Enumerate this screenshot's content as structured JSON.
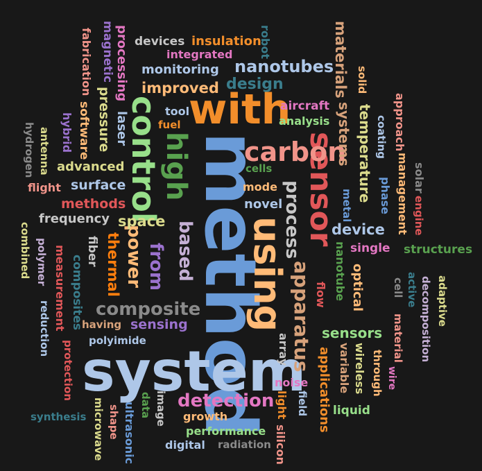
{
  "background": "#181818",
  "words": [
    {
      "text": "method",
      "color": "#6a9bd8"
    },
    {
      "text": "system",
      "color": "#aec7e8"
    },
    {
      "text": "with",
      "color": "#f28e2b"
    },
    {
      "text": "using",
      "color": "#ffbb78"
    },
    {
      "text": "sensor",
      "color": "#e15759"
    },
    {
      "text": "carbon",
      "color": "#f1948a"
    },
    {
      "text": "control",
      "color": "#98df8a"
    },
    {
      "text": "high",
      "color": "#59a14f"
    },
    {
      "text": "composite",
      "color": "#8a8a8a"
    },
    {
      "text": "detection",
      "color": "#e377c2"
    },
    {
      "text": "apparatus",
      "color": "#d7a27b"
    },
    {
      "text": "process",
      "color": "#c7c7c7"
    },
    {
      "text": "from",
      "color": "#9b72ce"
    },
    {
      "text": "power",
      "color": "#ffbb78"
    },
    {
      "text": "based",
      "color": "#c5b0d5"
    },
    {
      "text": "nanotubes",
      "color": "#aec7e8"
    },
    {
      "text": "design",
      "color": "#3a7d8c"
    },
    {
      "text": "improved",
      "color": "#ffbb78"
    },
    {
      "text": "space",
      "color": "#dbdb8d"
    },
    {
      "text": "methods",
      "color": "#e15759"
    },
    {
      "text": "surface",
      "color": "#aec7e8"
    },
    {
      "text": "advanced",
      "color": "#dbdb8d"
    },
    {
      "text": "frequency",
      "color": "#c7c7c7"
    },
    {
      "text": "thermal",
      "color": "#ff7f0e"
    },
    {
      "text": "device",
      "color": "#aec7e8"
    },
    {
      "text": "single",
      "color": "#e377c2"
    },
    {
      "text": "sensors",
      "color": "#98df8a"
    },
    {
      "text": "sensing",
      "color": "#9b72ce"
    },
    {
      "text": "monitoring",
      "color": "#aec7e8"
    },
    {
      "text": "insulation",
      "color": "#f28e2b"
    },
    {
      "text": "integrated",
      "color": "#e377c2"
    },
    {
      "text": "devices",
      "color": "#c7c7c7"
    },
    {
      "text": "aircraft",
      "color": "#e377c2"
    },
    {
      "text": "analysis",
      "color": "#98df8a"
    },
    {
      "text": "temperature",
      "color": "#dbdb8d"
    },
    {
      "text": "systems",
      "color": "#d7a27b"
    },
    {
      "text": "materials",
      "color": "#d7a27b"
    },
    {
      "text": "pressure",
      "color": "#dbdb8d"
    },
    {
      "text": "laser",
      "color": "#aec7e8"
    },
    {
      "text": "processing",
      "color": "#e377c2"
    },
    {
      "text": "magnetic",
      "color": "#9b72ce"
    },
    {
      "text": "fabrication",
      "color": "#f1948a"
    },
    {
      "text": "robot",
      "color": "#3a7d8c"
    },
    {
      "text": "solid",
      "color": "#ffbb78"
    },
    {
      "text": "coating",
      "color": "#aec7e8"
    },
    {
      "text": "approach",
      "color": "#f1948a"
    },
    {
      "text": "management",
      "color": "#ffbb78"
    },
    {
      "text": "solar",
      "color": "#8a8a8a"
    },
    {
      "text": "engine",
      "color": "#e15759"
    },
    {
      "text": "phase",
      "color": "#6a9bd8"
    },
    {
      "text": "metal",
      "color": "#6a9bd8"
    },
    {
      "text": "novel",
      "color": "#aec7e8"
    },
    {
      "text": "mode",
      "color": "#ffbb78"
    },
    {
      "text": "cells",
      "color": "#59a14f"
    },
    {
      "text": "tool",
      "color": "#aec7e8"
    },
    {
      "text": "fuel",
      "color": "#f28e2b"
    },
    {
      "text": "software",
      "color": "#ffbb78"
    },
    {
      "text": "hybrid",
      "color": "#9b72ce"
    },
    {
      "text": "antenna",
      "color": "#dbdb8d"
    },
    {
      "text": "hydrogen",
      "color": "#8a8a8a"
    },
    {
      "text": "flight",
      "color": "#f1948a"
    },
    {
      "text": "fiber",
      "color": "#c7c7c7"
    },
    {
      "text": "composites",
      "color": "#3a7d8c"
    },
    {
      "text": "measurement",
      "color": "#e15759"
    },
    {
      "text": "polymer",
      "color": "#c5b0d5"
    },
    {
      "text": "reduction",
      "color": "#aec7e8"
    },
    {
      "text": "combined",
      "color": "#dbdb8d"
    },
    {
      "text": "having",
      "color": "#d7a27b"
    },
    {
      "text": "polyimide",
      "color": "#aec7e8"
    },
    {
      "text": "protection",
      "color": "#e15759"
    },
    {
      "text": "synthesis",
      "color": "#3a7d8c"
    },
    {
      "text": "microwave",
      "color": "#dbdb8d"
    },
    {
      "text": "shape",
      "color": "#f1948a"
    },
    {
      "text": "ultrasonic",
      "color": "#6a9bd8"
    },
    {
      "text": "data",
      "color": "#59a14f"
    },
    {
      "text": "image",
      "color": "#c7c7c7"
    },
    {
      "text": "digital",
      "color": "#aec7e8"
    },
    {
      "text": "growth",
      "color": "#ffbb78"
    },
    {
      "text": "performance",
      "color": "#98df8a"
    },
    {
      "text": "radiation",
      "color": "#8a8a8a"
    },
    {
      "text": "silicon",
      "color": "#f1948a"
    },
    {
      "text": "light",
      "color": "#f28e2b"
    },
    {
      "text": "field",
      "color": "#aec7e8"
    },
    {
      "text": "noise",
      "color": "#e377c2"
    },
    {
      "text": "array",
      "color": "#c7c7c7"
    },
    {
      "text": "applications",
      "color": "#f28e2b"
    },
    {
      "text": "liquid",
      "color": "#98df8a"
    },
    {
      "text": "variable",
      "color": "#d7a27b"
    },
    {
      "text": "wireless",
      "color": "#dbdb8d"
    },
    {
      "text": "through",
      "color": "#ffbb78"
    },
    {
      "text": "wire",
      "color": "#e377c2"
    },
    {
      "text": "material",
      "color": "#f1948a"
    },
    {
      "text": "flow",
      "color": "#e15759"
    },
    {
      "text": "nanotube",
      "color": "#59a14f"
    },
    {
      "text": "optical",
      "color": "#ffbb78"
    },
    {
      "text": "cell",
      "color": "#8a8a8a"
    },
    {
      "text": "active",
      "color": "#3a7d8c"
    },
    {
      "text": "decomposition",
      "color": "#c5b0d5"
    },
    {
      "text": "adaptive",
      "color": "#dbdb8d"
    },
    {
      "text": "structures",
      "color": "#59a14f"
    }
  ]
}
